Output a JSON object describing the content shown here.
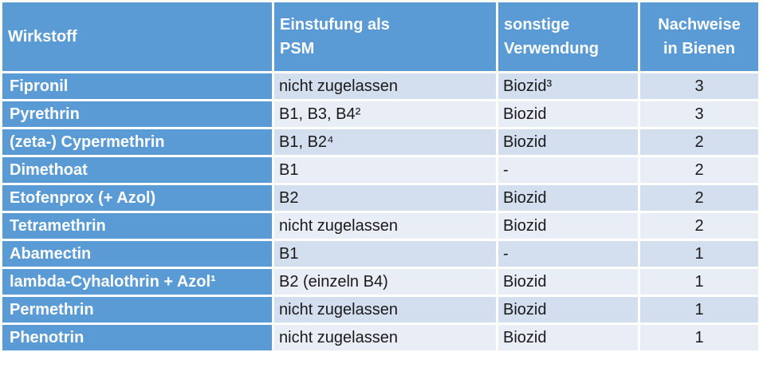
{
  "table": {
    "headers": [
      {
        "lines": [
          "Wirkstoff"
        ]
      },
      {
        "lines": [
          "Einstufung als",
          "PSM"
        ]
      },
      {
        "lines": [
          "sonstige",
          "Verwendung"
        ]
      },
      {
        "lines": [
          "Nachweise",
          "in Bienen"
        ]
      }
    ],
    "rows": [
      [
        "Fipronil",
        "nicht zugelassen",
        "Biozid³",
        "3"
      ],
      [
        "Pyrethrin",
        "B1, B3, B4²",
        "Biozid",
        "3"
      ],
      [
        "(zeta-) Cypermethrin",
        "B1, B2⁴",
        "Biozid",
        "2"
      ],
      [
        "Dimethoat",
        "B1",
        "-",
        "2"
      ],
      [
        "Etofenprox (+ Azol)",
        "B2",
        "Biozid",
        "2"
      ],
      [
        "Tetramethrin",
        "nicht zugelassen",
        "Biozid",
        "2"
      ],
      [
        "Abamectin",
        "B1",
        "-",
        "1"
      ],
      [
        "lambda-Cyhalothrin + Azol¹",
        "B2 (einzeln B4)",
        "Biozid",
        "1"
      ],
      [
        "Permethrin",
        "nicht zugelassen",
        "Biozid",
        "1"
      ],
      [
        "Phenotrin",
        "nicht zugelassen",
        "Biozid",
        "1"
      ]
    ],
    "colors": {
      "header_blue": "#5B9BD5",
      "band_odd": "#D3DEEE",
      "band_even": "#E9EEF6",
      "header_text": "#FFFFFF",
      "body_text": "#1A1A1A"
    }
  }
}
